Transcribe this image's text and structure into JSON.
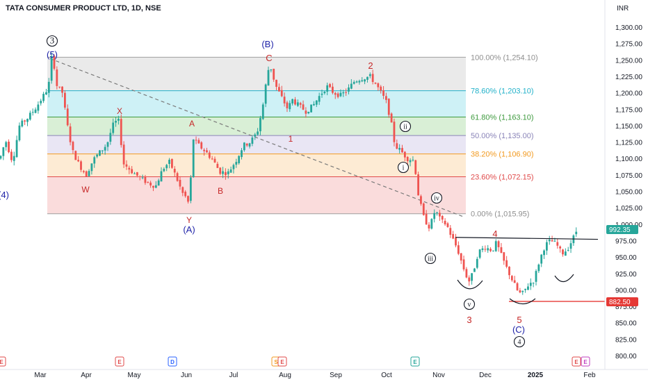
{
  "header": {
    "symbol_line": "TATA CONSUMER PRODUCT LTD, 1D, NSE",
    "currency": "INR"
  },
  "chart_data": {
    "type": "candlestick",
    "symbol": "TATA CONSUMER PRODUCT LTD",
    "interval": "1D",
    "exchange": "NSE",
    "currency": "INR",
    "y_range": [
      790,
      1320
    ],
    "y_ticks": [
      "1,300.00",
      "1,275.00",
      "1,250.00",
      "1,225.00",
      "1,200.00",
      "1,175.00",
      "1,150.00",
      "1,125.00",
      "1,100.00",
      "1,075.00",
      "1,050.00",
      "1,025.00",
      "1,000.00",
      "975.00",
      "950.00",
      "925.00",
      "900.00",
      "875.00",
      "850.00",
      "825.00",
      "800.00"
    ],
    "x_ticks": [
      "Mar",
      "Apr",
      "May",
      "Jun",
      "Jul",
      "Aug",
      "Sep",
      "Oct",
      "Nov",
      "Dec",
      "2025",
      "Feb"
    ],
    "last_price": "992.35",
    "support_price": "882.50",
    "fibonacci": [
      {
        "label": "100.00% (1,254.10)",
        "level": 1254.1,
        "fill": "#e6e6e6",
        "text_color": "#8e8e8e"
      },
      {
        "label": "78.60% (1,203.10)",
        "level": 1203.1,
        "fill": "#c6eef5",
        "text_color": "#21b1c9"
      },
      {
        "label": "61.80% (1,163.10)",
        "level": 1163.1,
        "fill": "#d2eccf",
        "text_color": "#3e9a3e"
      },
      {
        "label": "50.00% (1,135.00)",
        "level": 1135.0,
        "fill": "#e5e2f2",
        "text_color": "#8a84b8"
      },
      {
        "label": "38.20% (1,106.90)",
        "level": 1106.9,
        "fill": "#fde8cc",
        "text_color": "#f29a20"
      },
      {
        "label": "23.60% (1,072.15)",
        "level": 1072.15,
        "fill": "#f9d6d6",
        "text_color": "#e04a4a"
      },
      {
        "label": "0.00% (1,015.95)",
        "level": 1015.95,
        "fill": "none",
        "text_color": "#8e8e8e"
      }
    ],
    "wave_labels": [
      {
        "text": "3",
        "circled": true,
        "color": "#131722"
      },
      {
        "text": "(5)",
        "circled": false,
        "color": "#1e22a8"
      },
      {
        "text": "(4)",
        "circled": false,
        "color": "#1e22a8"
      },
      {
        "text": "X",
        "circled": false,
        "color": "#c62828"
      },
      {
        "text": "W",
        "circled": false,
        "color": "#c62828"
      },
      {
        "text": "Y",
        "circled": false,
        "color": "#c62828"
      },
      {
        "text": "(A)",
        "circled": false,
        "color": "#1e22a8"
      },
      {
        "text": "A",
        "circled": false,
        "color": "#c62828"
      },
      {
        "text": "B",
        "circled": false,
        "color": "#c62828"
      },
      {
        "text": "(B)",
        "circled": false,
        "color": "#1e22a8"
      },
      {
        "text": "C",
        "circled": false,
        "color": "#c62828"
      },
      {
        "text": "1",
        "circled": false,
        "color": "#c62828"
      },
      {
        "text": "2",
        "circled": false,
        "color": "#c62828"
      },
      {
        "text": "ii",
        "circled": true,
        "color": "#131722"
      },
      {
        "text": "i",
        "circled": true,
        "color": "#131722"
      },
      {
        "text": "iv",
        "circled": true,
        "color": "#131722"
      },
      {
        "text": "iii",
        "circled": true,
        "color": "#131722"
      },
      {
        "text": "v",
        "circled": true,
        "color": "#131722"
      },
      {
        "text": "3",
        "circled": false,
        "color": "#c62828"
      },
      {
        "text": "4",
        "circled": false,
        "color": "#c62828"
      },
      {
        "text": "5",
        "circled": false,
        "color": "#c62828"
      },
      {
        "text": "(C)",
        "circled": false,
        "color": "#1e22a8"
      },
      {
        "text": "4",
        "circled": true,
        "color": "#131722"
      }
    ],
    "event_markers": [
      {
        "text": "E",
        "color": "#e04a4a"
      },
      {
        "text": "E",
        "color": "#e04a4a"
      },
      {
        "text": "D",
        "color": "#2962ff"
      },
      {
        "text": "S",
        "color": "#f29a20"
      },
      {
        "text": "E",
        "color": "#e04a4a"
      },
      {
        "text": "E",
        "color": "#26a69a"
      },
      {
        "text": "E",
        "color": "#e04a4a"
      },
      {
        "text": "E",
        "color": "#c040c0"
      }
    ],
    "anchors": [
      {
        "x": 0,
        "y": 1100
      },
      {
        "x": 8,
        "y": 1128
      },
      {
        "x": 18,
        "y": 1095
      },
      {
        "x": 28,
        "y": 1150
      },
      {
        "x": 40,
        "y": 1162
      },
      {
        "x": 52,
        "y": 1178
      },
      {
        "x": 64,
        "y": 1198
      },
      {
        "x": 70,
        "y": 1210
      },
      {
        "x": 73,
        "y": 1255
      },
      {
        "x": 77,
        "y": 1248
      },
      {
        "x": 82,
        "y": 1210
      },
      {
        "x": 90,
        "y": 1200
      },
      {
        "x": 96,
        "y": 1155
      },
      {
        "x": 104,
        "y": 1112
      },
      {
        "x": 114,
        "y": 1090
      },
      {
        "x": 124,
        "y": 1075
      },
      {
        "x": 134,
        "y": 1098
      },
      {
        "x": 144,
        "y": 1110
      },
      {
        "x": 154,
        "y": 1122
      },
      {
        "x": 162,
        "y": 1150
      },
      {
        "x": 170,
        "y": 1160
      },
      {
        "x": 178,
        "y": 1092
      },
      {
        "x": 190,
        "y": 1080
      },
      {
        "x": 202,
        "y": 1070
      },
      {
        "x": 214,
        "y": 1062
      },
      {
        "x": 224,
        "y": 1058
      },
      {
        "x": 234,
        "y": 1084
      },
      {
        "x": 244,
        "y": 1095
      },
      {
        "x": 254,
        "y": 1070
      },
      {
        "x": 262,
        "y": 1048
      },
      {
        "x": 268,
        "y": 1040
      },
      {
        "x": 272,
        "y": 1030
      },
      {
        "x": 278,
        "y": 1130
      },
      {
        "x": 286,
        "y": 1120
      },
      {
        "x": 296,
        "y": 1110
      },
      {
        "x": 306,
        "y": 1098
      },
      {
        "x": 316,
        "y": 1080
      },
      {
        "x": 328,
        "y": 1078
      },
      {
        "x": 340,
        "y": 1098
      },
      {
        "x": 350,
        "y": 1120
      },
      {
        "x": 360,
        "y": 1125
      },
      {
        "x": 370,
        "y": 1140
      },
      {
        "x": 378,
        "y": 1180
      },
      {
        "x": 384,
        "y": 1225
      },
      {
        "x": 388,
        "y": 1245
      },
      {
        "x": 396,
        "y": 1212
      },
      {
        "x": 404,
        "y": 1195
      },
      {
        "x": 414,
        "y": 1175
      },
      {
        "x": 420,
        "y": 1190
      },
      {
        "x": 430,
        "y": 1180
      },
      {
        "x": 440,
        "y": 1172
      },
      {
        "x": 450,
        "y": 1180
      },
      {
        "x": 460,
        "y": 1196
      },
      {
        "x": 470,
        "y": 1210
      },
      {
        "x": 480,
        "y": 1200
      },
      {
        "x": 490,
        "y": 1196
      },
      {
        "x": 500,
        "y": 1204
      },
      {
        "x": 510,
        "y": 1218
      },
      {
        "x": 520,
        "y": 1222
      },
      {
        "x": 532,
        "y": 1225
      },
      {
        "x": 540,
        "y": 1214
      },
      {
        "x": 548,
        "y": 1200
      },
      {
        "x": 556,
        "y": 1185
      },
      {
        "x": 562,
        "y": 1158
      },
      {
        "x": 568,
        "y": 1120
      },
      {
        "x": 576,
        "y": 1112
      },
      {
        "x": 586,
        "y": 1100
      },
      {
        "x": 594,
        "y": 1098
      },
      {
        "x": 598,
        "y": 1078
      },
      {
        "x": 602,
        "y": 1042
      },
      {
        "x": 610,
        "y": 1008
      },
      {
        "x": 618,
        "y": 995
      },
      {
        "x": 626,
        "y": 1022
      },
      {
        "x": 634,
        "y": 1005
      },
      {
        "x": 642,
        "y": 1000
      },
      {
        "x": 650,
        "y": 980
      },
      {
        "x": 658,
        "y": 962
      },
      {
        "x": 666,
        "y": 935
      },
      {
        "x": 674,
        "y": 912
      },
      {
        "x": 680,
        "y": 925
      },
      {
        "x": 688,
        "y": 958
      },
      {
        "x": 698,
        "y": 965
      },
      {
        "x": 708,
        "y": 960
      },
      {
        "x": 714,
        "y": 972
      },
      {
        "x": 720,
        "y": 955
      },
      {
        "x": 728,
        "y": 935
      },
      {
        "x": 738,
        "y": 912
      },
      {
        "x": 746,
        "y": 895
      },
      {
        "x": 752,
        "y": 895
      },
      {
        "x": 760,
        "y": 908
      },
      {
        "x": 768,
        "y": 915
      },
      {
        "x": 776,
        "y": 945
      },
      {
        "x": 784,
        "y": 968
      },
      {
        "x": 792,
        "y": 975
      },
      {
        "x": 800,
        "y": 970
      },
      {
        "x": 808,
        "y": 955
      },
      {
        "x": 816,
        "y": 962
      },
      {
        "x": 824,
        "y": 978
      },
      {
        "x": 830,
        "y": 992
      }
    ]
  }
}
